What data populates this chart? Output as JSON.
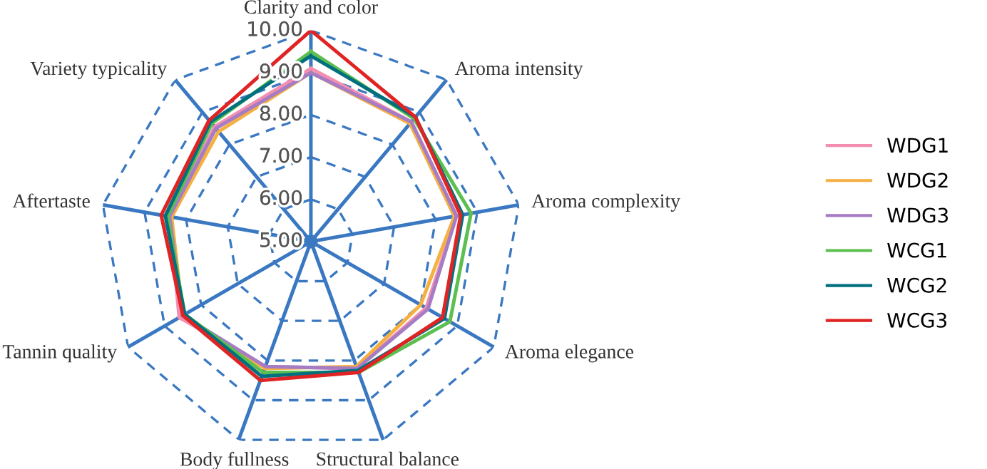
{
  "chart_data": {
    "type": "radar",
    "categories": [
      "Clarity and color",
      "Aroma intensity",
      "Aroma complexity",
      "Aroma elegance",
      "Structural balance",
      "Body fullness",
      "Tannin quality",
      "Aftertaste",
      "Variety typicality"
    ],
    "ylim": [
      5,
      10
    ],
    "yticks": [
      {
        "value": 5,
        "label": "5.00"
      },
      {
        "value": 6,
        "label": "6.00"
      },
      {
        "value": 7,
        "label": "7.00"
      },
      {
        "value": 8,
        "label": "8.00"
      },
      {
        "value": 9,
        "label": "9.00"
      },
      {
        "value": 10,
        "label": "10.00"
      }
    ],
    "grid": true,
    "legend": "right",
    "line_style": "solid",
    "marker": "none",
    "series": [
      {
        "name": "WDG1",
        "color": "#f48fb1",
        "values": [
          9.1,
          8.7,
          8.5,
          8.15,
          8.2,
          8.15,
          8.6,
          8.4,
          8.55
        ]
      },
      {
        "name": "WDG2",
        "color": "#f5b041",
        "values": [
          9.0,
          8.65,
          8.45,
          8.0,
          8.15,
          8.2,
          8.5,
          8.35,
          8.4
        ]
      },
      {
        "name": "WDG3",
        "color": "#a67cc5",
        "values": [
          9.0,
          8.7,
          8.5,
          8.2,
          8.2,
          8.15,
          8.5,
          8.4,
          8.5
        ]
      },
      {
        "name": "WCG1",
        "color": "#5cbf4f",
        "values": [
          9.5,
          8.8,
          8.85,
          8.8,
          8.3,
          8.3,
          8.45,
          8.45,
          8.65
        ]
      },
      {
        "name": "WCG2",
        "color": "#00707f",
        "values": [
          9.4,
          8.85,
          8.65,
          8.65,
          8.25,
          8.4,
          8.45,
          8.5,
          8.7
        ]
      },
      {
        "name": "WCG3",
        "color": "#e02424",
        "values": [
          10.0,
          8.85,
          8.6,
          8.6,
          8.3,
          8.5,
          8.5,
          8.6,
          8.75
        ]
      }
    ]
  }
}
